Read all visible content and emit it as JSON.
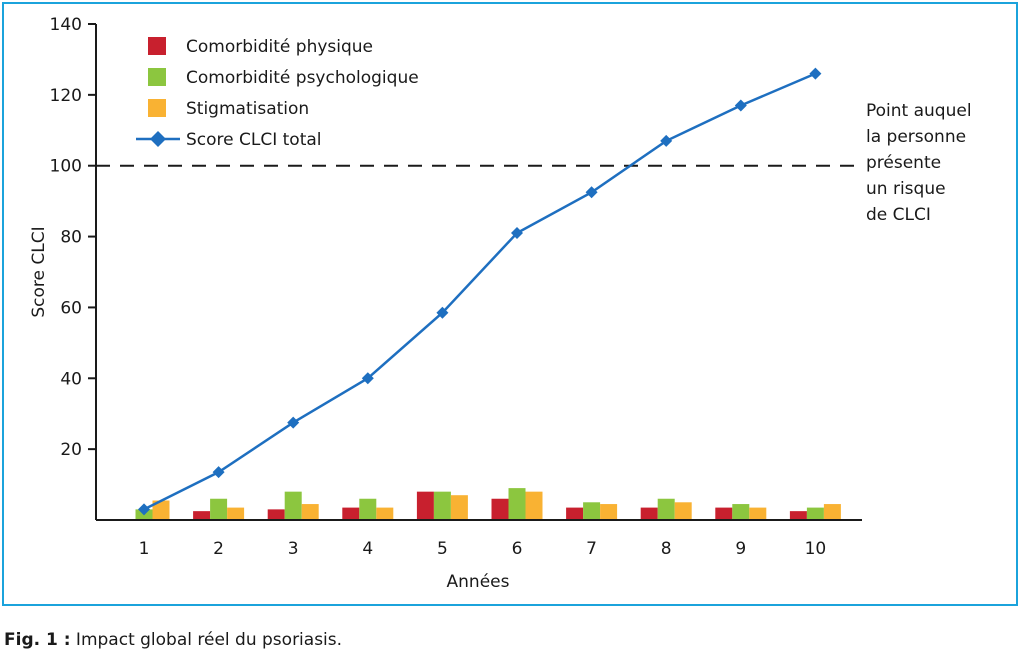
{
  "chart_data": {
    "type": "bar",
    "ylabel": "Score CLCI",
    "xlabel": "Années",
    "ylim": [
      0,
      140
    ],
    "yticks": [
      20,
      40,
      60,
      80,
      100,
      120,
      140
    ],
    "categories": [
      "1",
      "2",
      "3",
      "4",
      "5",
      "6",
      "7",
      "8",
      "9",
      "10"
    ],
    "series": [
      {
        "name": "Comorbidité physique",
        "kind": "bar",
        "color": "#c8202e",
        "values": [
          0,
          2.5,
          3,
          3.5,
          8,
          6,
          3.5,
          3.5,
          3.5,
          2.5
        ]
      },
      {
        "name": "Comorbidité psychologique",
        "kind": "bar",
        "color": "#8cc63f",
        "values": [
          3,
          6,
          8,
          6,
          8,
          9,
          5,
          6,
          4.5,
          3.5
        ]
      },
      {
        "name": "Stigmatisation",
        "kind": "bar",
        "color": "#f9b233",
        "values": [
          5.5,
          3.5,
          4.5,
          3.5,
          7,
          8,
          4.5,
          5,
          3.5,
          4.5
        ]
      },
      {
        "name": "Score CLCI total",
        "kind": "line",
        "color": "#1e6fc0",
        "values": [
          3,
          13.5,
          27.5,
          40,
          58.5,
          81,
          92.5,
          107,
          117,
          126
        ]
      }
    ],
    "threshold": {
      "value": 100,
      "style": "dashed",
      "color": "#1a1a1a",
      "label": [
        "Point auquel",
        "la personne",
        "présente",
        "un risque",
        "de CLCI"
      ]
    },
    "legend_position": "top-left",
    "grid": false
  },
  "caption": {
    "lead": "Fig. 1 :",
    "text": " Impact global réel du psoriasis."
  }
}
